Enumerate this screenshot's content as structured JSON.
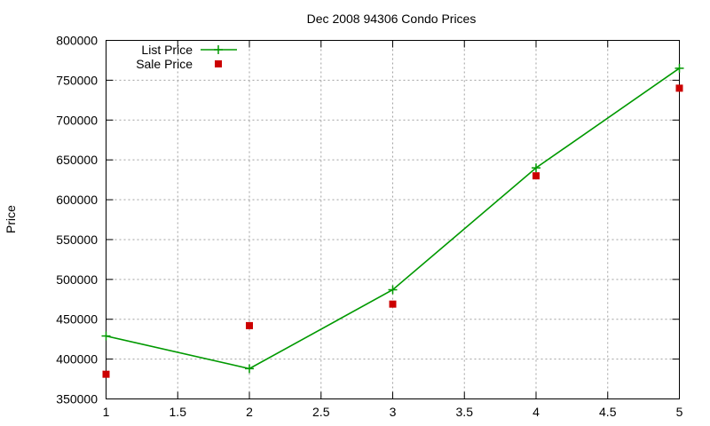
{
  "chart_data": {
    "type": "line",
    "title": "Dec 2008 94306 Condo Prices",
    "xlabel": "",
    "ylabel": "Price",
    "xlim": [
      1,
      5
    ],
    "ylim": [
      350000,
      800000
    ],
    "x_ticks": [
      1,
      1.5,
      2,
      2.5,
      3,
      3.5,
      4,
      4.5,
      5
    ],
    "x_tick_labels": [
      "1",
      "1.5",
      "2",
      "2.5",
      "3",
      "3.5",
      "4",
      "4.5",
      "5"
    ],
    "y_ticks": [
      350000,
      400000,
      450000,
      500000,
      550000,
      600000,
      650000,
      700000,
      750000,
      800000
    ],
    "y_tick_labels": [
      "350000",
      "400000",
      "450000",
      "500000",
      "550000",
      "600000",
      "650000",
      "700000",
      "750000",
      "800000"
    ],
    "grid": true,
    "legend_position": "top-left",
    "series": [
      {
        "name": "List Price",
        "style": "linespoints",
        "marker": "plus",
        "color": "#009900",
        "x": [
          1,
          2,
          3,
          4,
          5
        ],
        "values": [
          429000,
          388000,
          487000,
          640000,
          765000
        ]
      },
      {
        "name": "Sale Price",
        "style": "points",
        "marker": "square",
        "color": "#cc0000",
        "x": [
          1,
          2,
          3,
          4,
          5
        ],
        "values": [
          381000,
          442000,
          469000,
          630000,
          740000
        ]
      }
    ]
  }
}
